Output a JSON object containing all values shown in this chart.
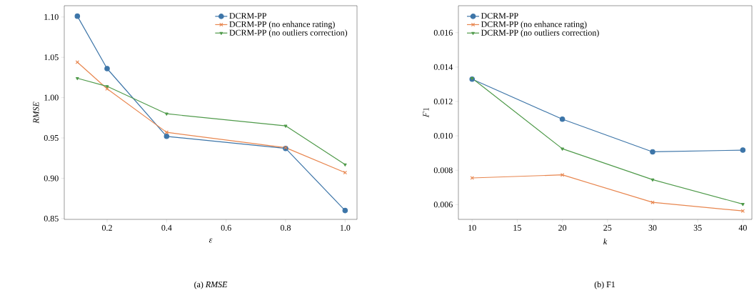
{
  "chart_data": [
    {
      "type": "line",
      "xlabel": "ε",
      "ylabel": "RMSE",
      "annotations": [
        "(a) *RMSE*"
      ],
      "x": [
        0.1,
        0.2,
        0.4,
        0.8,
        1.0
      ],
      "series": [
        {
          "name": "DCRM-PP",
          "color": "#3d75a8",
          "marker": "circle",
          "values": [
            1.101,
            1.036,
            0.952,
            0.937,
            0.86
          ]
        },
        {
          "name": "DCRM-PP (no enhance rating)",
          "color": "#e8864f",
          "marker": "cross",
          "values": [
            1.044,
            1.011,
            0.957,
            0.938,
            0.907
          ]
        },
        {
          "name": "DCRM-PP (no outliers correction)",
          "color": "#4f9a4a",
          "marker": "triangle",
          "values": [
            1.024,
            1.014,
            0.98,
            0.965,
            0.917
          ]
        }
      ],
      "xlim": [
        0.056,
        1.04
      ],
      "ylim": [
        0.849,
        1.114
      ],
      "xticks": [
        0.2,
        0.4,
        0.6,
        0.8,
        {
          "value": 1,
          "label": "1.0"
        }
      ],
      "yticks": [
        0.85,
        {
          "value": 0.9,
          "label": "0.90"
        },
        0.95,
        {
          "value": 1,
          "label": "1.00"
        },
        1.05,
        {
          "value": 1.1,
          "label": "1.10"
        }
      ],
      "grid": false,
      "legend": "top right",
      "line_style": "solid"
    },
    {
      "type": "line",
      "xlabel": "k",
      "ylabel": "F1",
      "annotations": [
        "(b) F1"
      ],
      "x": [
        10,
        20,
        30,
        40
      ],
      "series": [
        {
          "name": "DCRM-PP",
          "color": "#3d75a8",
          "marker": "circle",
          "values": [
            0.0133,
            0.01097,
            0.00907,
            0.00917
          ]
        },
        {
          "name": "DCRM-PP (no enhance rating)",
          "color": "#e8864f",
          "marker": "cross",
          "values": [
            0.00755,
            0.00773,
            0.00613,
            0.00563
          ]
        },
        {
          "name": "DCRM-PP (no outliers correction)",
          "color": "#4f9a4a",
          "marker": "triangle",
          "values": [
            0.01335,
            0.00925,
            0.00745,
            0.00603
          ]
        }
      ],
      "xlim": [
        8.48,
        41.0
      ],
      "ylim": [
        0.00514,
        0.01757
      ],
      "xticks": [
        10,
        15,
        20,
        25,
        30,
        35,
        40
      ],
      "yticks": [
        0.006,
        0.008,
        {
          "value": 0.01,
          "label": "0.010"
        },
        0.012,
        0.014,
        0.016
      ],
      "grid": false,
      "legend": "top left",
      "line_style": "solid"
    }
  ]
}
